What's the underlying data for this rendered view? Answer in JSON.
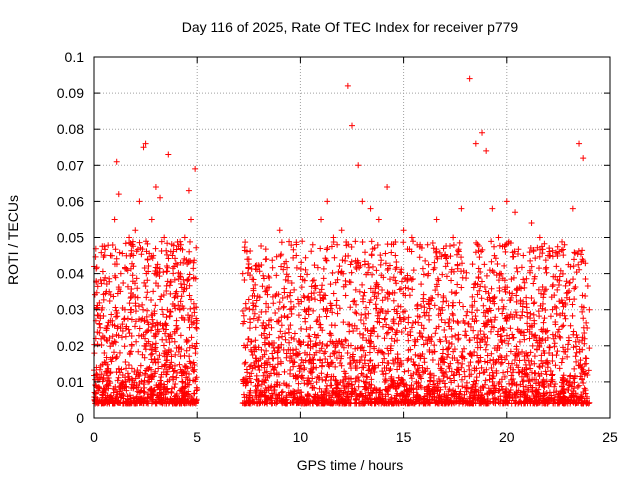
{
  "chart_data": {
    "type": "scatter",
    "title": "Day 116 of 2025, Rate Of TEC Index for receiver p779",
    "xlabel": "GPS time / hours",
    "ylabel": "ROTI / TECUs",
    "xlim": [
      0,
      25
    ],
    "ylim": [
      0,
      0.1
    ],
    "xticks": [
      "0",
      "5",
      "10",
      "15",
      "20",
      "25"
    ],
    "yticks": [
      "0",
      "0.01",
      "0.02",
      "0.03",
      "0.04",
      "0.05",
      "0.06",
      "0.07",
      "0.08",
      "0.09",
      "0.1"
    ],
    "grid": true,
    "marker": "plus",
    "color": "#ff0000",
    "data_gap_hours": [
      5.0,
      7.2
    ],
    "series": [
      {
        "x": [
          0.1,
          0.3,
          0.5,
          0.6,
          0.8,
          1.0,
          1.1,
          1.2,
          1.3,
          1.5,
          1.7,
          1.9,
          2.0,
          2.2,
          2.4,
          2.5,
          2.6,
          2.8,
          3.0,
          3.2,
          3.4,
          3.6,
          3.8,
          4.0,
          4.2,
          4.4,
          4.6,
          4.7,
          4.9,
          5.0,
          7.3,
          7.5,
          7.7,
          8.0,
          8.3,
          8.6,
          9.0,
          9.4,
          9.8,
          10.2,
          10.6,
          11.0,
          11.3,
          11.6,
          12.0,
          12.3,
          12.5,
          12.8,
          13.0,
          13.4,
          13.8,
          14.2,
          14.6,
          15.0,
          15.4,
          15.8,
          16.2,
          16.6,
          17.0,
          17.4,
          17.8,
          18.2,
          18.5,
          18.8,
          19.0,
          19.3,
          19.6,
          20.0,
          20.4,
          20.8,
          21.2,
          21.6,
          22.0,
          22.4,
          22.8,
          23.2,
          23.5,
          23.7,
          24.0
        ],
        "y": [
          0.012,
          0.025,
          0.018,
          0.035,
          0.045,
          0.055,
          0.071,
          0.062,
          0.04,
          0.03,
          0.05,
          0.045,
          0.052,
          0.06,
          0.075,
          0.076,
          0.044,
          0.055,
          0.064,
          0.061,
          0.05,
          0.073,
          0.045,
          0.035,
          0.043,
          0.05,
          0.063,
          0.055,
          0.069,
          0.008,
          0.015,
          0.044,
          0.03,
          0.042,
          0.035,
          0.025,
          0.052,
          0.038,
          0.045,
          0.03,
          0.048,
          0.055,
          0.06,
          0.05,
          0.052,
          0.092,
          0.081,
          0.07,
          0.06,
          0.058,
          0.055,
          0.064,
          0.045,
          0.052,
          0.05,
          0.048,
          0.04,
          0.055,
          0.045,
          0.05,
          0.058,
          0.094,
          0.076,
          0.079,
          0.074,
          0.058,
          0.05,
          0.06,
          0.057,
          0.045,
          0.054,
          0.05,
          0.045,
          0.042,
          0.048,
          0.058,
          0.076,
          0.072,
          0.03
        ]
      }
    ]
  }
}
